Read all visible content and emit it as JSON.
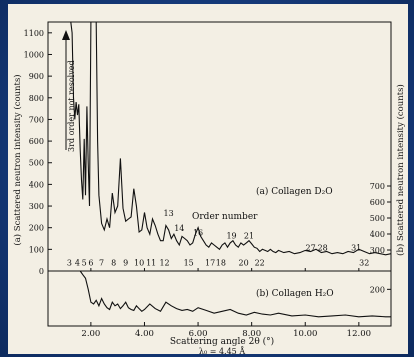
{
  "chart_data": [
    {
      "panel": "upper",
      "type": "line",
      "series_label": "(a) Collagen D₂O",
      "ylabel_left": "(a) Scattered neutron intensity (counts)",
      "ylabel_right": "(b) Scattered neutron intensity (counts)",
      "xlim": [
        0.4,
        13.2
      ],
      "ylim": [
        0,
        1150
      ],
      "yticks_left": [
        0,
        100,
        200,
        300,
        400,
        500,
        600,
        700,
        800,
        900,
        1000,
        1100
      ],
      "yticks_right": [
        300,
        400,
        500,
        600,
        700
      ],
      "annotation": "3rd order not resolved",
      "order_label": "Order number",
      "order_numbers": [
        {
          "n": "3",
          "x": 1.2,
          "y": 25
        },
        {
          "n": "4",
          "x": 1.5,
          "y": 25
        },
        {
          "n": "5",
          "x": 1.75,
          "y": 25
        },
        {
          "n": "6",
          "x": 2.0,
          "y": 25
        },
        {
          "n": "7",
          "x": 2.4,
          "y": 25
        },
        {
          "n": "8",
          "x": 2.85,
          "y": 25
        },
        {
          "n": "9",
          "x": 3.3,
          "y": 25
        },
        {
          "n": "10",
          "x": 3.8,
          "y": 25
        },
        {
          "n": "11",
          "x": 4.25,
          "y": 25
        },
        {
          "n": "12",
          "x": 4.75,
          "y": 25
        },
        {
          "n": "13",
          "x": 4.9,
          "y": 255
        },
        {
          "n": "14",
          "x": 5.3,
          "y": 185
        },
        {
          "n": "15",
          "x": 5.65,
          "y": 25
        },
        {
          "n": "16",
          "x": 6.0,
          "y": 165
        },
        {
          "n": "17",
          "x": 6.45,
          "y": 25
        },
        {
          "n": "18",
          "x": 6.85,
          "y": 25
        },
        {
          "n": "19",
          "x": 7.25,
          "y": 150
        },
        {
          "n": "20",
          "x": 7.7,
          "y": 25
        },
        {
          "n": "21",
          "x": 7.9,
          "y": 150
        },
        {
          "n": "22",
          "x": 8.3,
          "y": 25
        },
        {
          "n": "27",
          "x": 10.2,
          "y": 95
        },
        {
          "n": "28",
          "x": 10.65,
          "y": 95
        },
        {
          "n": "31",
          "x": 11.9,
          "y": 95
        },
        {
          "n": "32",
          "x": 12.2,
          "y": 25
        }
      ],
      "x": [
        1.25,
        1.3,
        1.35,
        1.4,
        1.45,
        1.5,
        1.55,
        1.6,
        1.65,
        1.7,
        1.75,
        1.8,
        1.85,
        1.9,
        1.95,
        2.0,
        2.05,
        2.1,
        2.15,
        2.2,
        2.25,
        2.3,
        2.4,
        2.5,
        2.6,
        2.7,
        2.8,
        2.9,
        3.0,
        3.1,
        3.2,
        3.3,
        3.4,
        3.5,
        3.6,
        3.7,
        3.8,
        3.9,
        4.0,
        4.1,
        4.2,
        4.3,
        4.4,
        4.5,
        4.6,
        4.7,
        4.8,
        4.9,
        5.0,
        5.1,
        5.2,
        5.3,
        5.4,
        5.5,
        5.6,
        5.7,
        5.8,
        5.9,
        6.0,
        6.1,
        6.2,
        6.3,
        6.4,
        6.5,
        6.6,
        6.7,
        6.8,
        6.9,
        7.0,
        7.1,
        7.2,
        7.3,
        7.4,
        7.5,
        7.6,
        7.7,
        7.8,
        7.9,
        8.0,
        8.1,
        8.2,
        8.3,
        8.4,
        8.5,
        8.6,
        8.7,
        8.8,
        8.9,
        9.0,
        9.2,
        9.4,
        9.6,
        9.8,
        10.0,
        10.2,
        10.4,
        10.6,
        10.8,
        11.0,
        11.2,
        11.4,
        11.6,
        11.8,
        12.0,
        12.2,
        12.4,
        12.6,
        12.8,
        13.0,
        13.2
      ],
      "y": [
        1150,
        1100,
        800,
        700,
        780,
        720,
        770,
        560,
        420,
        330,
        610,
        350,
        760,
        500,
        300,
        1150,
        1150,
        1150,
        1150,
        1150,
        600,
        350,
        220,
        190,
        240,
        200,
        360,
        270,
        300,
        520,
        290,
        230,
        240,
        250,
        380,
        300,
        180,
        190,
        270,
        200,
        170,
        240,
        210,
        170,
        140,
        140,
        210,
        190,
        150,
        170,
        140,
        120,
        160,
        150,
        140,
        120,
        130,
        170,
        200,
        160,
        140,
        120,
        110,
        130,
        120,
        110,
        100,
        120,
        130,
        110,
        130,
        140,
        120,
        110,
        130,
        120,
        130,
        140,
        125,
        110,
        105,
        90,
        100,
        95,
        90,
        100,
        90,
        85,
        95,
        85,
        90,
        80,
        85,
        95,
        90,
        100,
        85,
        90,
        80,
        85,
        80,
        90,
        85,
        100,
        90,
        80,
        85,
        80,
        75,
        80
      ]
    },
    {
      "panel": "lower",
      "type": "line",
      "series_label": "(b) Collagen H₂O",
      "xlabel": "Scattering angle 2θ (°)",
      "wavelength": "λ₀ = 4.45 Å",
      "xlim": [
        0.4,
        13.2
      ],
      "ylim": [
        0,
        300
      ],
      "yticks_right": [
        200
      ],
      "xticks": [
        "2.00",
        "4.00",
        "6.00",
        "8.00",
        "10.00",
        "12.00"
      ],
      "x": [
        1.6,
        1.7,
        1.8,
        1.9,
        2.0,
        2.1,
        2.2,
        2.3,
        2.4,
        2.5,
        2.6,
        2.7,
        2.8,
        2.9,
        3.0,
        3.1,
        3.2,
        3.3,
        3.4,
        3.5,
        3.6,
        3.7,
        3.8,
        3.9,
        4.0,
        4.2,
        4.4,
        4.6,
        4.8,
        5.0,
        5.2,
        5.4,
        5.6,
        5.8,
        6.0,
        6.3,
        6.6,
        6.9,
        7.2,
        7.5,
        7.8,
        8.1,
        8.4,
        8.7,
        9.0,
        9.5,
        10.0,
        10.5,
        11.0,
        11.5,
        12.0,
        12.5,
        13.0,
        13.2
      ],
      "y": [
        300,
        280,
        260,
        200,
        130,
        120,
        140,
        110,
        150,
        120,
        100,
        90,
        130,
        110,
        120,
        95,
        110,
        130,
        100,
        90,
        85,
        110,
        95,
        80,
        90,
        120,
        95,
        80,
        130,
        110,
        95,
        85,
        90,
        80,
        100,
        85,
        70,
        80,
        90,
        70,
        60,
        75,
        65,
        60,
        70,
        55,
        60,
        50,
        55,
        60,
        50,
        55,
        50,
        50
      ]
    }
  ]
}
